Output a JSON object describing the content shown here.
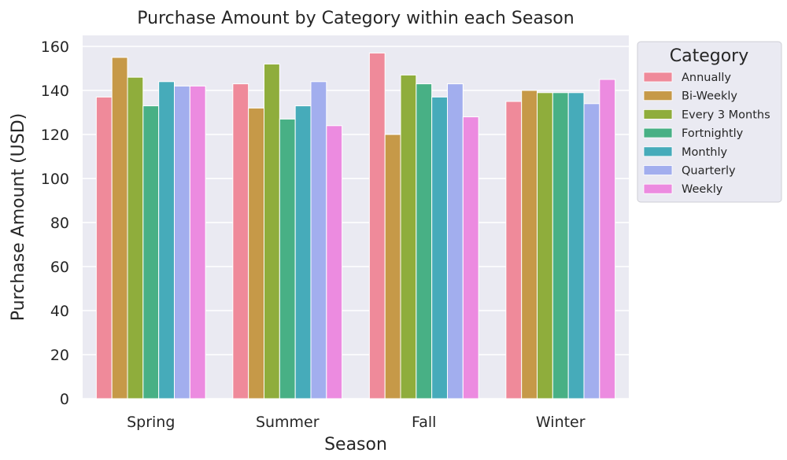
{
  "chart_data": {
    "type": "bar",
    "title": "Purchase Amount by Category within each Season",
    "xlabel": "Season",
    "ylabel": "Purchase Amount (USD)",
    "categories": [
      "Spring",
      "Summer",
      "Fall",
      "Winter"
    ],
    "ylim": [
      0,
      165
    ],
    "yticks": [
      0,
      20,
      40,
      60,
      80,
      100,
      120,
      140,
      160
    ],
    "grid": true,
    "legend": {
      "title": "Category",
      "placement": "outside-right"
    },
    "series": [
      {
        "name": "Annually",
        "color": "#ef8a9a",
        "values": [
          137,
          143,
          157,
          135
        ]
      },
      {
        "name": "Bi-Weekly",
        "color": "#c69948",
        "values": [
          155,
          132,
          120,
          140
        ]
      },
      {
        "name": "Every 3 Months",
        "color": "#8fad3c",
        "values": [
          146,
          152,
          147,
          139
        ]
      },
      {
        "name": "Fortnightly",
        "color": "#48b085",
        "values": [
          133,
          127,
          143,
          139
        ]
      },
      {
        "name": "Monthly",
        "color": "#46abba",
        "values": [
          144,
          133,
          137,
          139
        ]
      },
      {
        "name": "Quarterly",
        "color": "#a2aeee",
        "values": [
          142,
          144,
          143,
          134
        ]
      },
      {
        "name": "Weekly",
        "color": "#ec8be0",
        "values": [
          142,
          124,
          128,
          145
        ]
      }
    ]
  }
}
